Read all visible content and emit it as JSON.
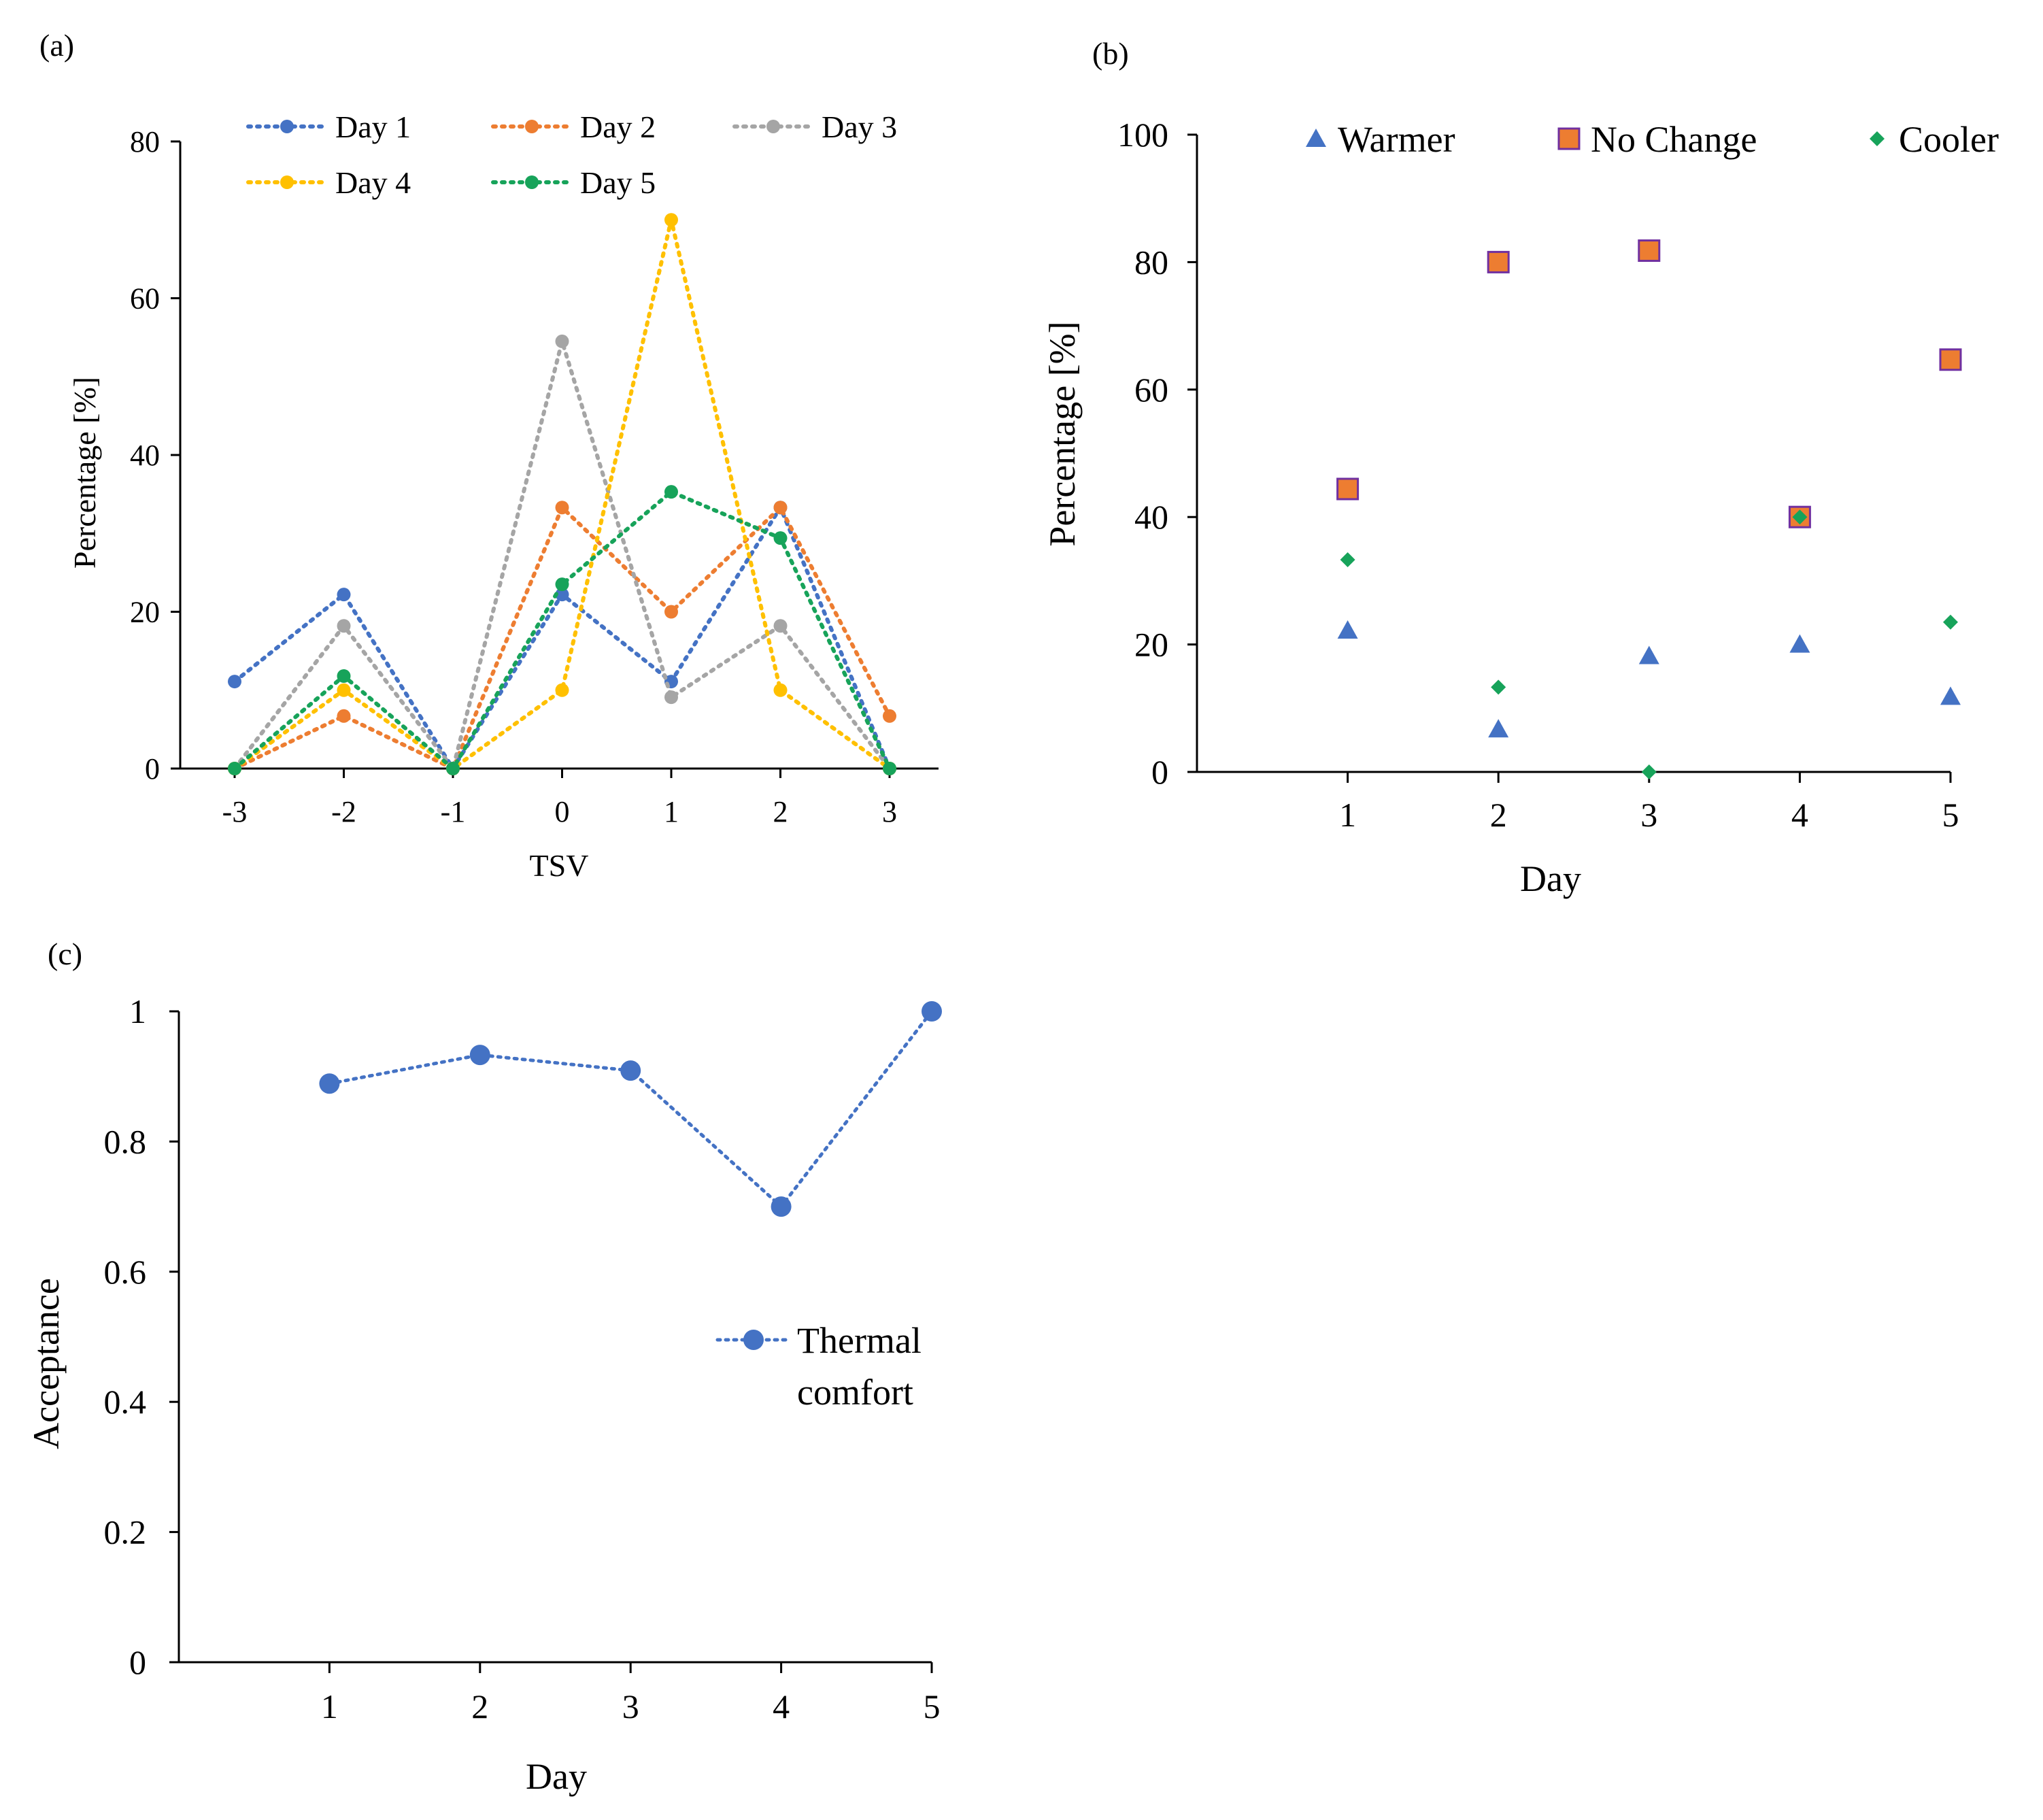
{
  "chart_data": [
    {
      "id": "a",
      "panel_label": "(a)",
      "type": "line",
      "xlabel": "TSV",
      "ylabel": "Percentage [%]",
      "x": [
        -3,
        -2,
        -1,
        0,
        1,
        2,
        3
      ],
      "x_tick_labels": [
        "-3",
        "-2",
        "-1",
        "0",
        "1",
        "2",
        "3"
      ],
      "ylim": [
        0,
        80
      ],
      "y_ticks": [
        0,
        20,
        40,
        60,
        80
      ],
      "y_tick_labels": [
        "0",
        "20",
        "40",
        "60",
        "80"
      ],
      "legend_position": "top",
      "series": [
        {
          "name": "Day 1",
          "color": "#4472C4",
          "values": [
            11.1,
            22.2,
            0,
            22.2,
            11.1,
            33.3,
            0
          ]
        },
        {
          "name": "Day 2",
          "color": "#ED7D31",
          "values": [
            0,
            6.7,
            0,
            33.3,
            20,
            33.3,
            6.7
          ]
        },
        {
          "name": "Day 3",
          "color": "#A5A5A5",
          "values": [
            0,
            18.2,
            0,
            54.5,
            9.1,
            18.2,
            0
          ]
        },
        {
          "name": "Day 4",
          "color": "#FFC000",
          "values": [
            0,
            10,
            0,
            10,
            70,
            10,
            0
          ]
        },
        {
          "name": "Day 5",
          "color": "#17A35A",
          "values": [
            0,
            11.8,
            0,
            23.5,
            35.3,
            29.4,
            0
          ]
        }
      ]
    },
    {
      "id": "b",
      "panel_label": "(b)",
      "type": "scatter",
      "xlabel": "Day",
      "ylabel": "Percentage [%]",
      "x": [
        1,
        2,
        3,
        4,
        5
      ],
      "x_tick_labels": [
        "1",
        "2",
        "3",
        "4",
        "5"
      ],
      "xlim": [
        0,
        5
      ],
      "ylim": [
        0,
        100
      ],
      "y_ticks": [
        0,
        20,
        40,
        60,
        80,
        100
      ],
      "y_tick_labels": [
        "0",
        "20",
        "40",
        "60",
        "80",
        "100"
      ],
      "legend_position": "top",
      "series": [
        {
          "name": "Warmer",
          "marker": "triangle",
          "color": "#4472C4",
          "values": [
            22.2,
            6.7,
            18.2,
            20,
            11.8
          ]
        },
        {
          "name": "No Change",
          "marker": "square",
          "color": "#ED7D31",
          "edge_color": "#7030A0",
          "values": [
            44.4,
            80,
            81.8,
            40,
            64.7
          ]
        },
        {
          "name": "Cooler",
          "marker": "diamond",
          "color": "#17A35A",
          "values": [
            33.3,
            13.3,
            0,
            40,
            23.5
          ]
        }
      ]
    },
    {
      "id": "c",
      "panel_label": "(c)",
      "type": "line",
      "xlabel": "Day",
      "ylabel": "Acceptance",
      "x": [
        1,
        2,
        3,
        4,
        5
      ],
      "x_tick_labels": [
        "1",
        "2",
        "3",
        "4",
        "5"
      ],
      "xlim": [
        0,
        5
      ],
      "ylim": [
        0,
        1
      ],
      "y_ticks": [
        0,
        0.2,
        0.4,
        0.6,
        0.8,
        1
      ],
      "y_tick_labels": [
        "0",
        "0.2",
        "0.4",
        "0.6",
        "0.8",
        "1"
      ],
      "legend_position": "right",
      "series": [
        {
          "name": "Thermal comfort",
          "legend_lines": [
            "Thermal",
            "comfort"
          ],
          "color": "#4472C4",
          "values": [
            0.889,
            0.933,
            0.909,
            0.7,
            1.0
          ]
        }
      ]
    }
  ]
}
